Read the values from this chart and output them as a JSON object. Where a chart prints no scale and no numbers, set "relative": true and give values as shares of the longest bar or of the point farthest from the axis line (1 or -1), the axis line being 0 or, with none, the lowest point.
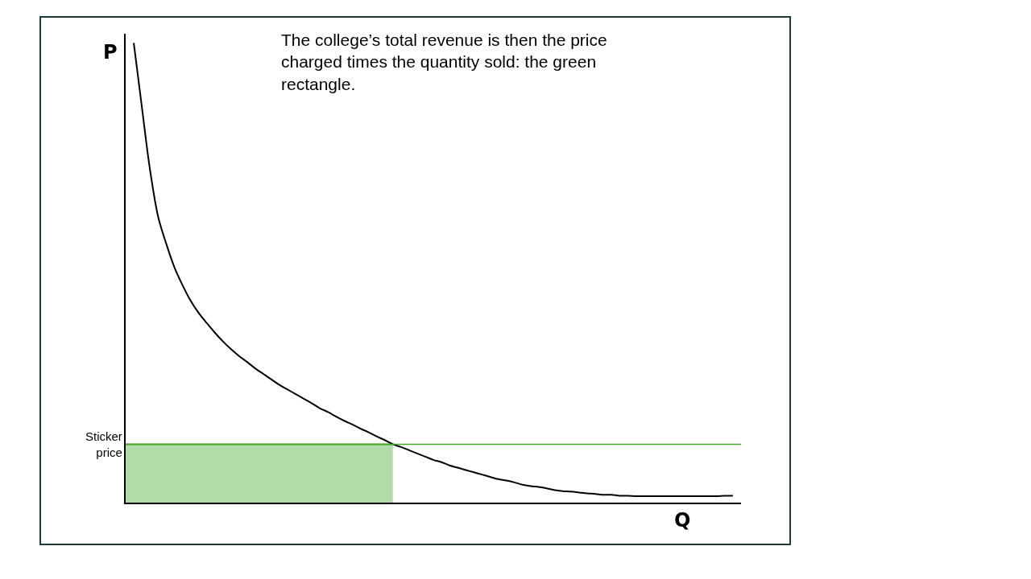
{
  "chart_data": {
    "type": "line",
    "relative": true,
    "xlabel": "Q",
    "ylabel": "P",
    "annotations": [
      "The college’s total revenue is then the price charged times the quantity sold: the green rectangle."
    ],
    "categories": [
      null,
      null,
      null,
      null,
      null,
      null,
      null,
      null,
      null,
      null,
      null,
      null,
      null,
      null,
      null,
      null,
      null,
      null,
      null,
      null,
      null,
      null,
      null,
      null,
      null,
      null,
      null,
      null,
      null,
      null,
      null,
      null,
      null,
      null,
      null,
      null,
      null,
      null,
      null,
      null,
      null,
      null,
      null,
      null,
      null,
      null,
      null,
      null,
      null,
      null,
      null,
      null,
      null,
      null,
      null,
      null,
      null,
      null,
      null,
      null,
      null,
      null,
      null,
      null,
      null,
      null,
      null,
      null,
      null,
      null,
      null,
      null,
      null,
      null,
      null,
      null
    ],
    "series": [
      {
        "type": "area",
        "color": "#4aa832",
        "values": [
          0.127,
          0.127,
          0.127,
          0.127,
          0.127,
          0.127,
          0.127,
          0.127,
          0.127,
          0.127,
          0.127,
          0.127,
          0.127,
          0.127,
          0.127,
          0.127,
          0.127,
          0.127,
          0.127,
          0.127,
          0.127,
          0.127,
          0.127,
          0.127,
          0.127,
          0.127,
          0.127,
          0.127,
          0.127,
          0.127,
          0.127,
          0.127,
          0.127,
          0.127,
          null,
          null,
          null,
          null,
          null,
          null,
          null,
          null,
          null,
          null,
          null,
          null,
          null,
          null,
          null,
          null,
          null,
          null,
          null,
          null,
          null,
          null,
          null,
          null,
          null,
          null,
          null,
          null,
          null,
          null,
          null,
          null,
          null,
          null,
          null,
          null,
          null,
          null,
          null,
          null,
          null,
          null
        ]
      },
      {
        "color": "#000000",
        "values": [
          null,
          1.0,
          0.861,
          0.725,
          0.623,
          0.564,
          0.513,
          0.474,
          0.44,
          0.413,
          0.391,
          0.37,
          0.351,
          0.334,
          0.319,
          0.306,
          0.292,
          0.28,
          0.268,
          0.256,
          0.246,
          0.236,
          0.226,
          0.216,
          0.205,
          0.197,
          0.187,
          0.178,
          0.17,
          0.161,
          0.153,
          0.144,
          0.136,
          0.127,
          0.121,
          0.114,
          0.107,
          0.1,
          0.093,
          0.088,
          0.081,
          0.076,
          0.071,
          0.066,
          0.061,
          0.056,
          0.051,
          0.048,
          0.044,
          0.039,
          0.036,
          0.034,
          0.031,
          0.027,
          0.025,
          0.024,
          0.022,
          0.02,
          0.019,
          0.017,
          0.017,
          0.015,
          0.015,
          0.014,
          0.014,
          0.014,
          0.014,
          0.014,
          0.014,
          0.014,
          0.014,
          0.014,
          0.014,
          0.014,
          0.015,
          0.015
        ]
      }
    ],
    "ref_lines": [
      {
        "axis": "y",
        "value": 0.127,
        "label": "Sticker price",
        "color": "#4aa832"
      }
    ]
  }
}
